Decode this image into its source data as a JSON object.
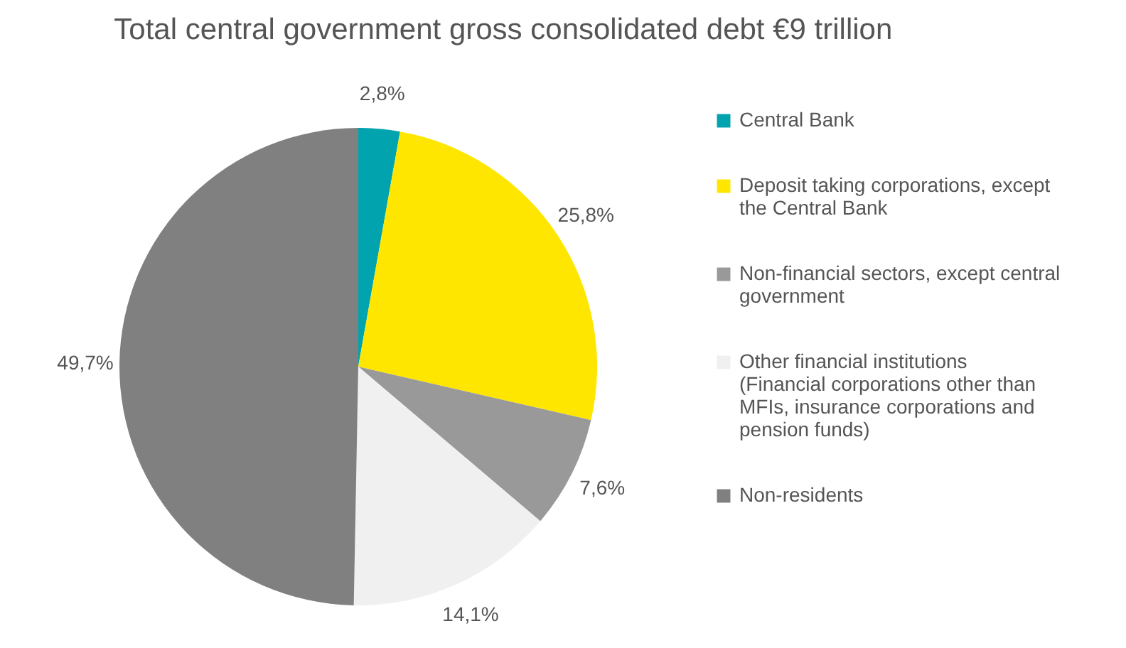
{
  "chart_data": {
    "type": "pie",
    "title": "Total central government gross consolidated debt €9 trillion",
    "categories": [
      "Central Bank",
      "Deposit taking corporations, except the Central Bank",
      "Non-financial sectors, except central government",
      "Other financial institutions (Financial corporations other than MFIs, insurance corporations and pension funds)",
      "Non-residents"
    ],
    "values": [
      2.8,
      25.8,
      7.6,
      14.1,
      49.7
    ],
    "colors": [
      "#00a3ae",
      "#ffe600",
      "#999999",
      "#f0f0f0",
      "#808080"
    ],
    "value_labels": [
      "2,8%",
      "25,8%",
      "7,6%",
      "14,1%",
      "49,7%"
    ],
    "legend": "right"
  }
}
